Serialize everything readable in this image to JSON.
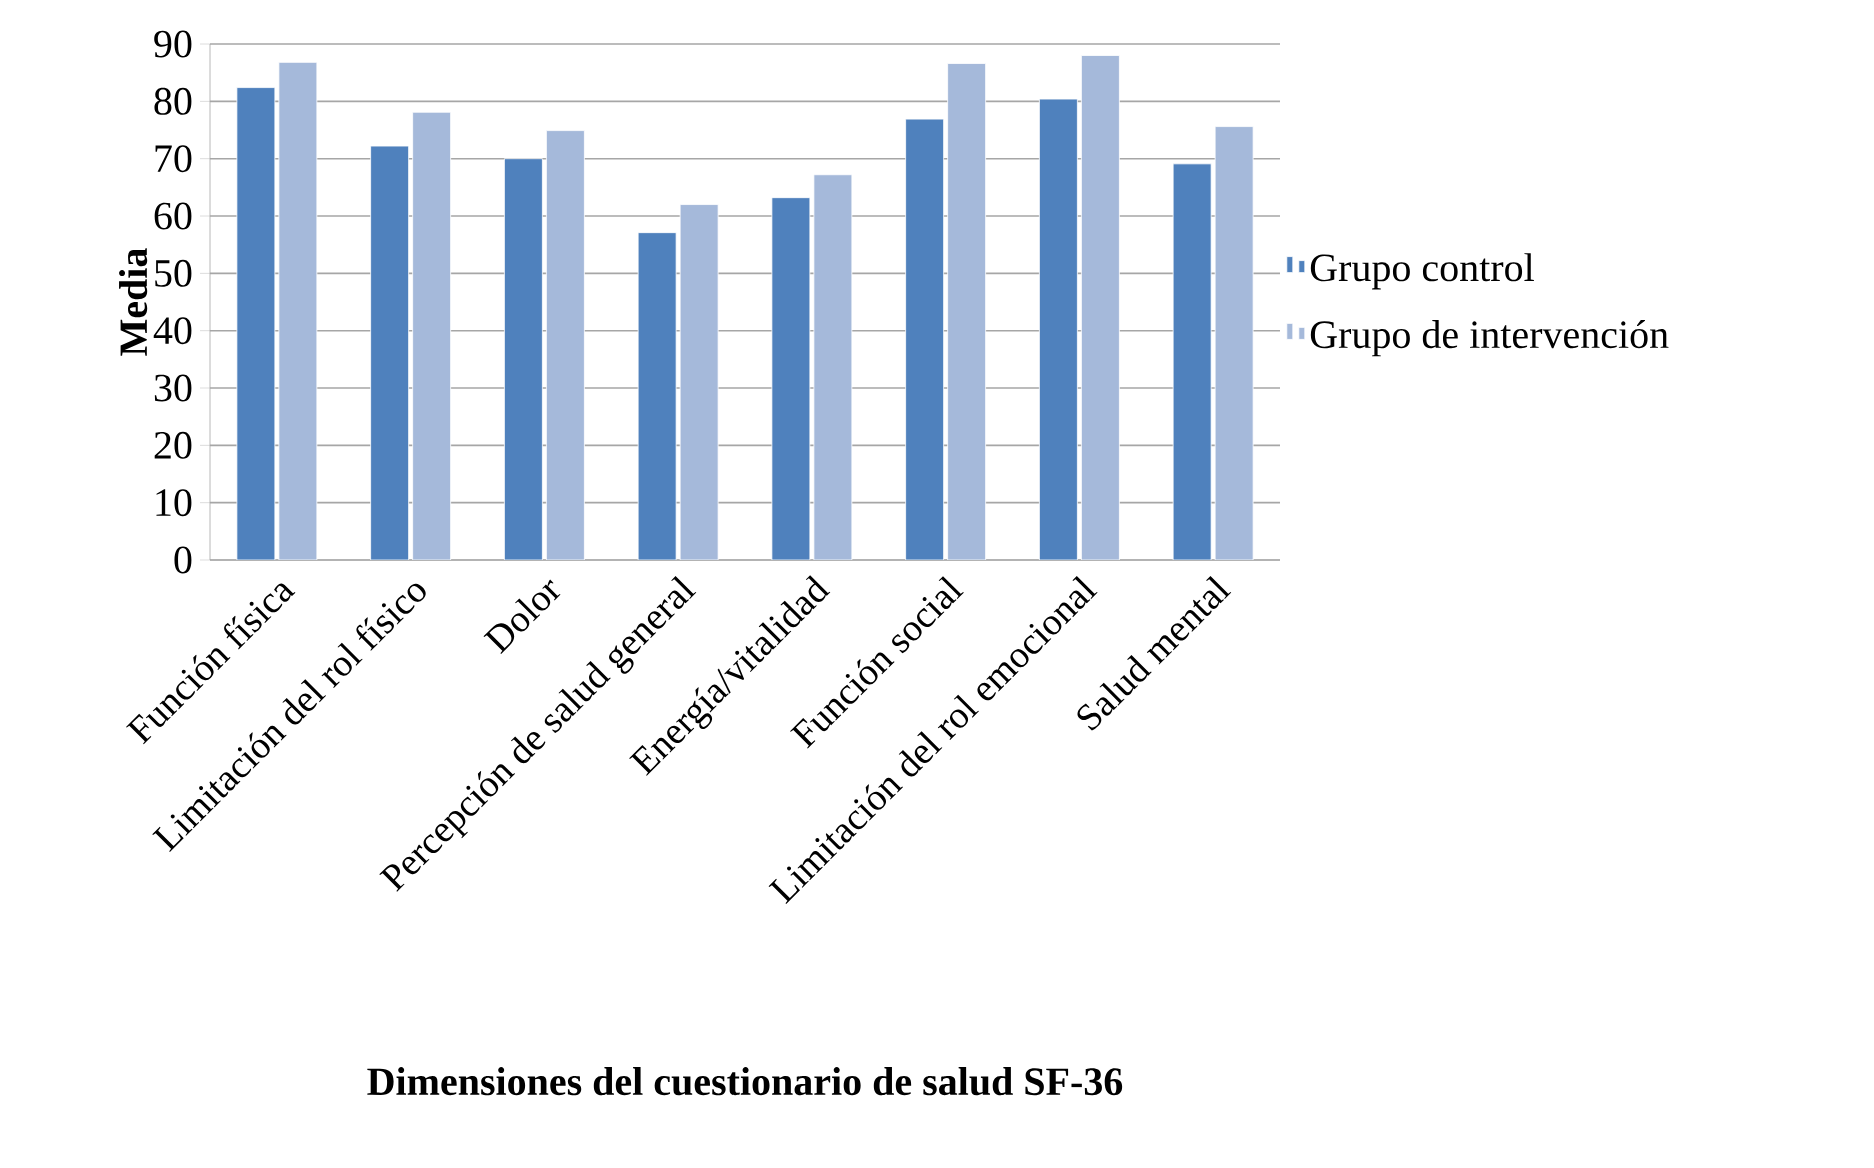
{
  "chart_data": {
    "type": "bar",
    "xlabel": "Dimensiones del cuestionario de salud SF-36",
    "ylabel": "Media",
    "categories": [
      "Función física",
      "Limitación del rol físico",
      "Dolor",
      "Percepción de salud general",
      "Energía/vitalidad",
      "Función social",
      "Limitación del rol emocional",
      "Salud mental"
    ],
    "series": [
      {
        "name": "Grupo control",
        "color": "#4f81bd",
        "values": [
          82.4,
          72.2,
          70.0,
          57.1,
          63.2,
          76.9,
          80.4,
          69.1
        ]
      },
      {
        "name": "Grupo de intervención",
        "color": "#a5b9da",
        "values": [
          86.8,
          78.1,
          74.9,
          62.0,
          67.2,
          86.6,
          88.0,
          75.6
        ]
      }
    ],
    "ylim": [
      0,
      90
    ],
    "yticks": [
      0,
      10,
      20,
      30,
      40,
      50,
      60,
      70,
      80,
      90
    ],
    "grid": "y",
    "legend": "right"
  }
}
